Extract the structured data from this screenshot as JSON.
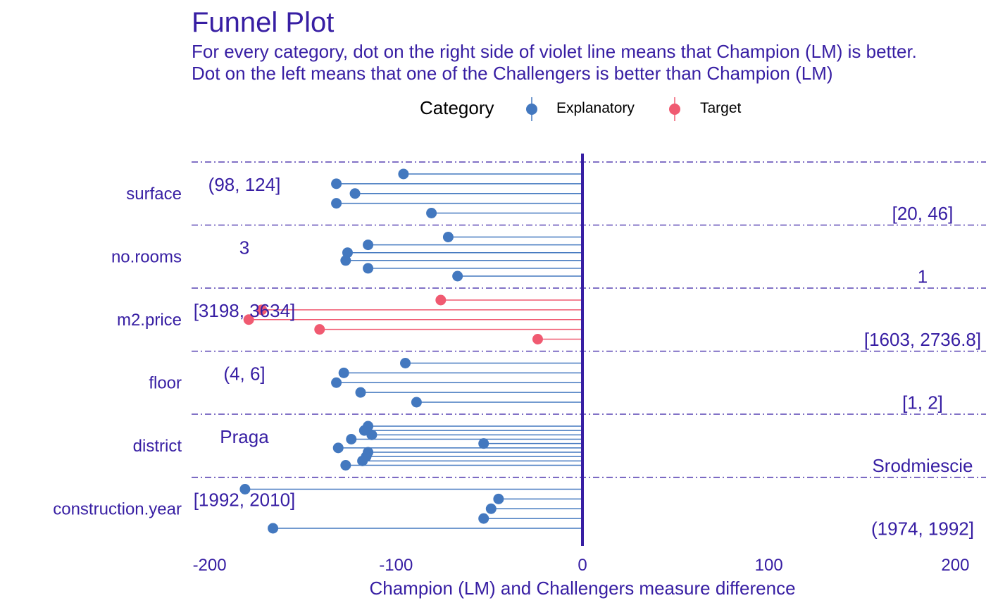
{
  "title": "Funnel Plot",
  "subtitle_lines": [
    "For every category, dot on the right side of violet line means that Champion (LM) is better.",
    "Dot on the left means that one of the Challengers is better than Champion (LM)"
  ],
  "legend": {
    "title": "Category",
    "items": [
      {
        "label": "Explanatory",
        "color": "#4378bf"
      },
      {
        "label": "Target",
        "color": "#f05a71"
      }
    ]
  },
  "colors": {
    "text": "#371ea3",
    "explanatory": "#4378bf",
    "target": "#f05a71",
    "zero_line": "#371ea3"
  },
  "chart_data": {
    "type": "scatter",
    "title": "Funnel Plot",
    "xlabel": "Champion (LM) and Challengers measure difference",
    "ylabel": "",
    "xlim": [
      -210,
      210
    ],
    "x_ticks": [
      "-200",
      "-100",
      "0",
      "100",
      "200"
    ],
    "x_tick_values": [
      -200,
      -100,
      0,
      100,
      200
    ],
    "grid": "dash-dot horizontal separators between variables",
    "legend_position": "top",
    "variables": [
      {
        "name": "surface",
        "category": "Explanatory",
        "left_label": "(98, 124]",
        "right_label": "[20, 46]",
        "values": [
          -96,
          -132,
          -122,
          -132,
          -81
        ]
      },
      {
        "name": "no.rooms",
        "category": "Explanatory",
        "left_label": "3",
        "right_label": "1",
        "values": [
          -72,
          -115,
          -126,
          -127,
          -115,
          -67
        ]
      },
      {
        "name": "m2.price",
        "category": "Target",
        "left_label": "[3198, 3634]",
        "right_label": "[1603, 2736.8]",
        "values": [
          -76,
          -172,
          -179,
          -141,
          -24
        ]
      },
      {
        "name": "floor",
        "category": "Explanatory",
        "left_label": "(4, 6]",
        "right_label": "[1, 2]",
        "values": [
          -95,
          -128,
          -132,
          -119,
          -89
        ]
      },
      {
        "name": "district",
        "category": "Explanatory",
        "left_label": "Praga",
        "right_label": "Srodmiescie",
        "values": [
          -115,
          -117,
          -113,
          -124,
          -53,
          -131,
          -115,
          -116,
          -118,
          -127
        ]
      },
      {
        "name": "construction.year",
        "category": "Explanatory",
        "left_label": "[1992, 2010]",
        "right_label": "(1974, 1992]",
        "values": [
          -181,
          -45,
          -49,
          -53,
          -166
        ]
      }
    ]
  }
}
